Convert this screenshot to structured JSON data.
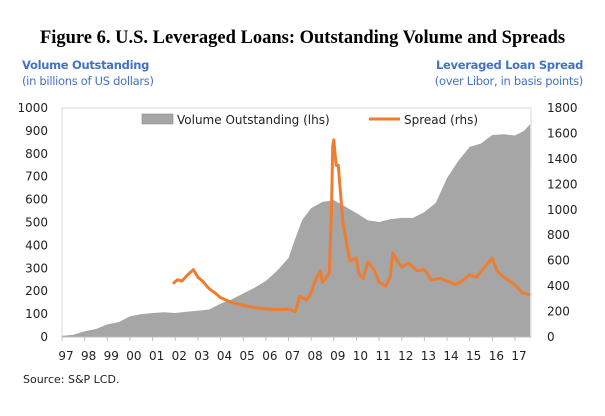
{
  "chart_data": {
    "type": "area+line",
    "title": "Figure 6. U.S. Leveraged Loans: Outstanding Volume and Spreads",
    "left_axis": {
      "label": "Volume Outstanding",
      "sublabel": "(in billions of US dollars)",
      "ylim": [
        0,
        1000
      ],
      "ticks": [
        0,
        100,
        200,
        300,
        400,
        500,
        600,
        700,
        800,
        900,
        1000
      ]
    },
    "right_axis": {
      "label": "Leveraged Loan Spread",
      "sublabel": "(over Libor, in basis points)",
      "ylim": [
        0,
        1800
      ],
      "ticks": [
        0,
        200,
        400,
        600,
        800,
        1000,
        1200,
        1400,
        1600,
        1800
      ]
    },
    "x_ticks": [
      "97",
      "98",
      "99",
      "00",
      "01",
      "02",
      "03",
      "04",
      "05",
      "06",
      "07",
      "08",
      "09",
      "10",
      "11",
      "12",
      "13",
      "14",
      "15",
      "16",
      "17"
    ],
    "xlim": [
      1997.0,
      2017.67
    ],
    "grid": false,
    "legend_position": "top",
    "series": [
      {
        "name": "Volume Outstanding (lhs)",
        "type": "area",
        "axis": "left",
        "color": "#A6A6A6",
        "x": [
          1997.0,
          1997.5,
          1998.0,
          1998.5,
          1999.0,
          1999.5,
          2000.0,
          2000.5,
          2001.0,
          2001.5,
          2002.0,
          2002.5,
          2003.0,
          2003.5,
          2004.0,
          2004.5,
          2005.0,
          2005.5,
          2006.0,
          2006.5,
          2007.0,
          2007.3,
          2007.6,
          2008.0,
          2008.5,
          2009.0,
          2009.5,
          2010.0,
          2010.5,
          2011.0,
          2011.5,
          2012.0,
          2012.5,
          2013.0,
          2013.5,
          2014.0,
          2014.5,
          2015.0,
          2015.5,
          2016.0,
          2016.5,
          2017.0,
          2017.4,
          2017.67
        ],
        "y": [
          5,
          10,
          25,
          35,
          55,
          65,
          90,
          100,
          105,
          108,
          105,
          110,
          115,
          120,
          145,
          165,
          190,
          215,
          245,
          290,
          345,
          430,
          510,
          563,
          590,
          598,
          570,
          541,
          510,
          502,
          515,
          520,
          520,
          546,
          585,
          694,
          770,
          830,
          845,
          882,
          885,
          880,
          900,
          930
        ]
      },
      {
        "name": "Spread (rhs)",
        "type": "line",
        "axis": "right",
        "color": "#ED7D31",
        "x": [
          2001.9,
          2002.1,
          2002.3,
          2002.5,
          2002.8,
          2003.0,
          2003.2,
          2003.5,
          2003.8,
          2004.0,
          2004.5,
          2005.0,
          2005.5,
          2006.0,
          2006.5,
          2007.0,
          2007.3,
          2007.5,
          2007.8,
          2008.0,
          2008.2,
          2008.4,
          2008.5,
          2008.8,
          2008.9,
          2008.95,
          2009.0,
          2009.1,
          2009.2,
          2009.4,
          2009.7,
          2010.0,
          2010.1,
          2010.3,
          2010.5,
          2010.8,
          2011.0,
          2011.3,
          2011.5,
          2011.6,
          2011.8,
          2012.0,
          2012.3,
          2012.7,
          2013.0,
          2013.3,
          2013.7,
          2014.0,
          2014.4,
          2014.8,
          2015.0,
          2015.3,
          2015.7,
          2016.0,
          2016.2,
          2016.5,
          2017.0,
          2017.3,
          2017.67
        ],
        "y": [
          420,
          450,
          440,
          480,
          530,
          470,
          440,
          380,
          340,
          310,
          270,
          250,
          230,
          220,
          215,
          220,
          200,
          320,
          290,
          350,
          450,
          520,
          430,
          500,
          1000,
          1500,
          1550,
          1350,
          1350,
          900,
          600,
          620,
          500,
          460,
          590,
          520,
          430,
          400,
          480,
          660,
          600,
          550,
          580,
          520,
          530,
          450,
          460,
          440,
          410,
          460,
          490,
          470,
          560,
          620,
          520,
          470,
          410,
          350,
          330
        ]
      }
    ]
  },
  "source": "Source:  S&P LCD."
}
